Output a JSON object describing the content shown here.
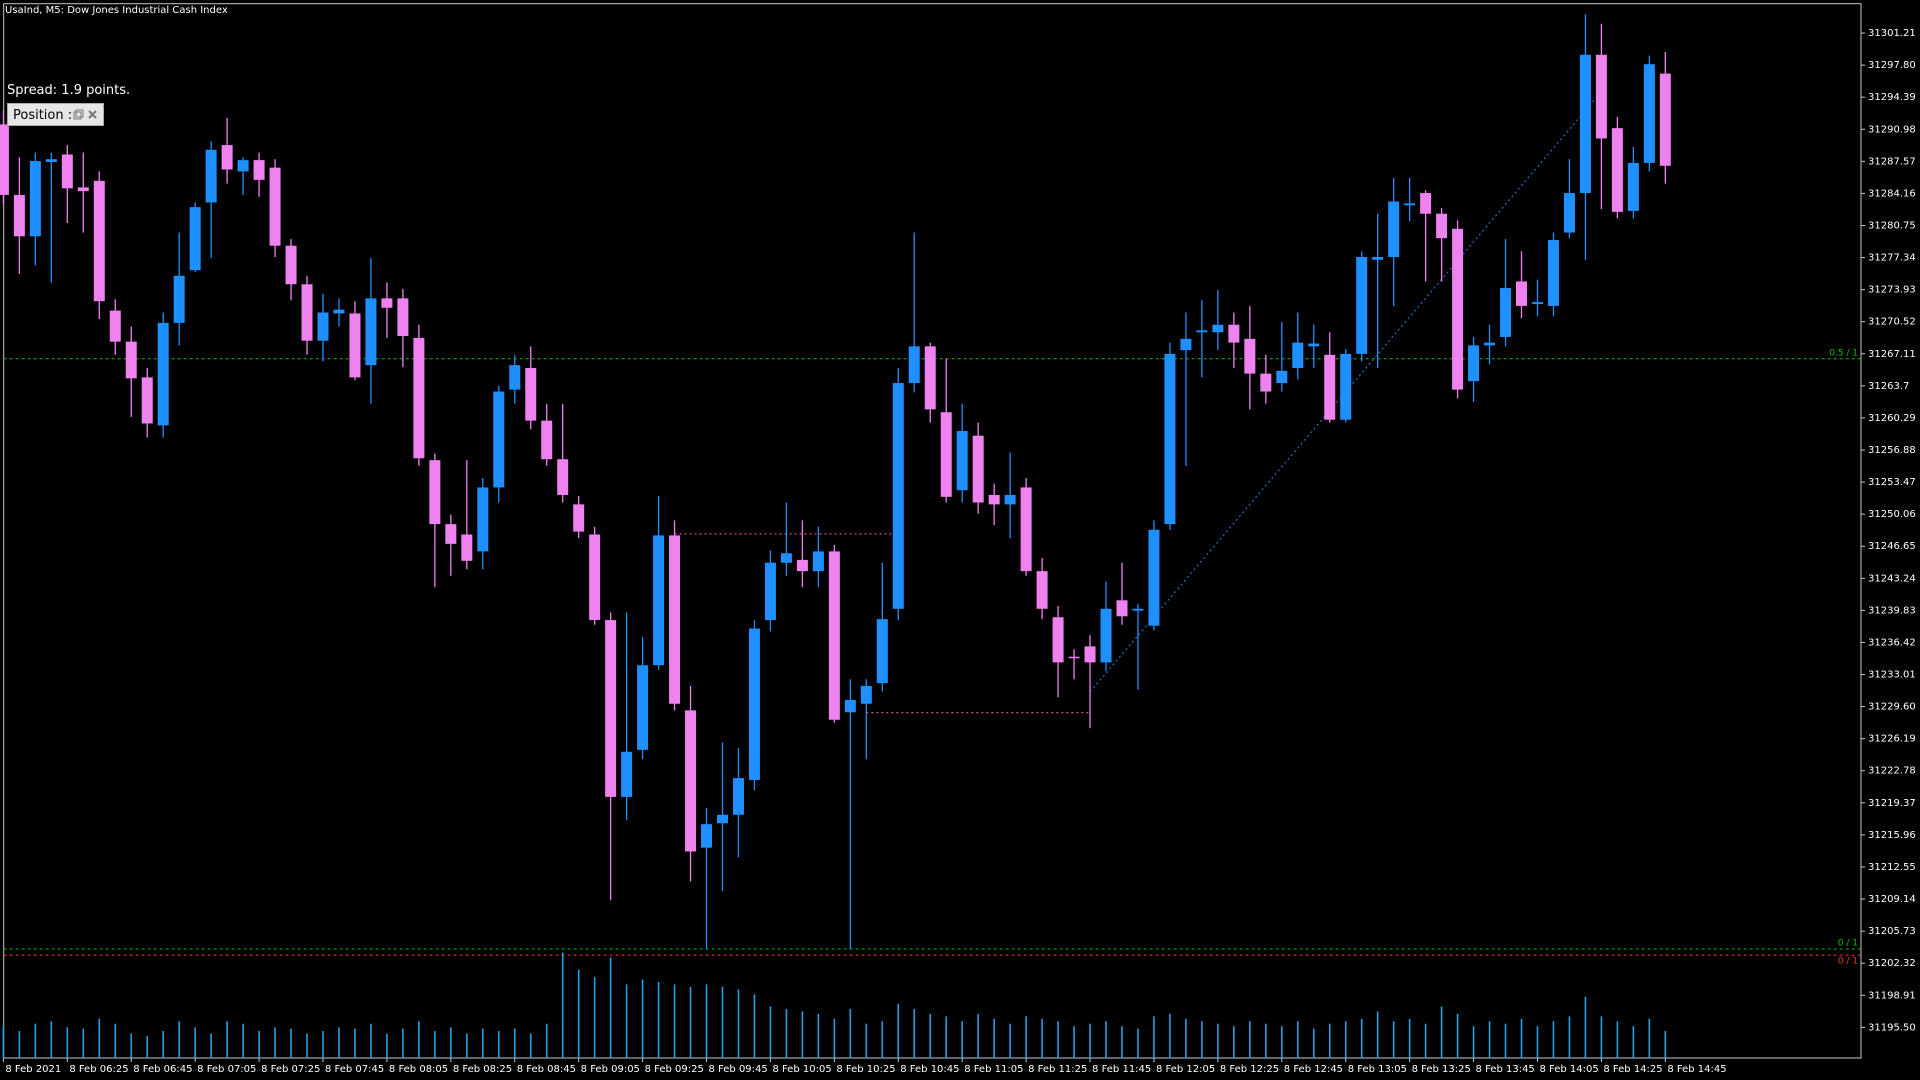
{
  "chart_data": {
    "type": "candlestick",
    "title": "UsaInd, M5:  Dow Jones Industrial Cash Index",
    "categories": [
      "8 Feb 2021",
      null,
      null,
      null,
      "8 Feb 06:25",
      null,
      null,
      null,
      "8 Feb 06:45",
      null,
      null,
      null,
      "8 Feb 07:05",
      null,
      null,
      null,
      "8 Feb 07:25",
      null,
      null,
      null,
      "8 Feb 07:45",
      null,
      null,
      null,
      "8 Feb 08:05",
      null,
      null,
      null,
      "8 Feb 08:25",
      null,
      null,
      null,
      "8 Feb 08:45",
      null,
      null,
      null,
      "8 Feb 09:05",
      null,
      null,
      null,
      "8 Feb 09:25",
      null,
      null,
      null,
      "8 Feb 09:45",
      null,
      null,
      null,
      "8 Feb 10:05",
      null,
      null,
      null,
      "8 Feb 10:25",
      null,
      null,
      null,
      "8 Feb 10:45",
      null,
      null,
      null,
      "8 Feb 11:05",
      null,
      null,
      null,
      "8 Feb 11:25",
      null,
      null,
      null,
      "8 Feb 11:45",
      null,
      null,
      null,
      "8 Feb 12:05",
      null,
      null,
      null,
      "8 Feb 12:25",
      null,
      null,
      null,
      "8 Feb 12:45",
      null,
      null,
      null,
      "8 Feb 13:05",
      null,
      null,
      null,
      "8 Feb 13:25",
      null,
      null,
      null,
      "8 Feb 13:45",
      null,
      null,
      null,
      "8 Feb 14:05",
      null,
      null,
      null,
      "8 Feb 14:25",
      null,
      null,
      null,
      "8 Feb 14:45"
    ],
    "open": [
      31291.5,
      31284.0,
      31279.6,
      31287.5,
      31288.3,
      31284.8,
      31285.5,
      31271.7,
      31268.4,
      31264.6,
      31259.5,
      31270.4,
      31276.0,
      31283.2,
      31289.3,
      31286.5,
      31287.7,
      31286.9,
      31278.6,
      31274.5,
      31268.5,
      31271.4,
      31271.4,
      31265.9,
      31273.0,
      31273.0,
      31268.8,
      31255.8,
      31249.0,
      31247.9,
      31246.1,
      31252.9,
      31263.3,
      31265.6,
      31260.0,
      31255.9,
      31251.1,
      31247.9,
      31238.8,
      31220.0,
      31225.0,
      31234.0,
      31247.8,
      31229.2,
      31214.6,
      31217.2,
      31218.1,
      31221.8,
      31238.8,
      31244.9,
      31245.2,
      31244.0,
      31246.1,
      31229.0,
      31229.9,
      31232.1,
      31240.0,
      31264.0,
      31267.9,
      31260.9,
      31252.6,
      31258.4,
      31252.1,
      31251.1,
      31252.9,
      31244.0,
      31239.1,
      31234.9,
      31236.0,
      31234.3,
      31240.9,
      31239.8,
      31238.2,
      31249.0,
      31267.5,
      31269.4,
      31269.4,
      31270.2,
      31268.7,
      31265.0,
      31264.0,
      31265.6,
      31267.9,
      31267.0,
      31260.1,
      31267.1,
      31277.1,
      31277.4,
      31282.9,
      31284.2,
      31282.0,
      31280.4,
      31264.2,
      31268.0,
      31268.9,
      31274.8,
      31272.4,
      31272.2,
      31280.0,
      31284.2,
      31298.9,
      31291.1,
      31282.3,
      31287.4,
      31296.9
    ],
    "high": [
      31293.0,
      31288.0,
      31288.5,
      31288.5,
      31289.3,
      31288.5,
      31286.5,
      31272.9,
      31270.0,
      31265.6,
      31271.5,
      31280.0,
      31283.2,
      31289.7,
      31292.2,
      31288.0,
      31288.5,
      31287.8,
      31279.3,
      31275.4,
      31273.5,
      31273.0,
      31272.7,
      31277.3,
      31274.7,
      31274.0,
      31270.2,
      31256.5,
      31250.0,
      31255.8,
      31253.9,
      31263.7,
      31267.0,
      31267.9,
      31261.8,
      31261.8,
      31252.0,
      31248.7,
      31239.6,
      31239.6,
      31237.0,
      31252.0,
      31249.4,
      31231.8,
      31218.8,
      31225.8,
      31225.2,
      31238.8,
      31246.2,
      31251.3,
      31249.4,
      31248.7,
      31246.8,
      31232.5,
      31232.5,
      31244.9,
      31265.6,
      31280.0,
      31268.3,
      31266.6,
      31261.8,
      31259.8,
      31253.3,
      31256.6,
      31253.9,
      31245.4,
      31240.3,
      31235.7,
      31237.2,
      31242.9,
      31244.9,
      31240.5,
      31249.4,
      31268.3,
      31271.5,
      31272.8,
      31273.9,
      31271.5,
      31272.2,
      31267.0,
      31270.5,
      31271.5,
      31270.2,
      31269.4,
      31267.6,
      31278.0,
      31282.0,
      31285.8,
      31285.8,
      31284.5,
      31282.6,
      31281.3,
      31268.9,
      31270.2,
      31279.3,
      31278.0,
      31275.0,
      31280.0,
      31287.8,
      31303.2,
      31302.2,
      31292.3,
      31289.1,
      31298.8,
      31299.2
    ],
    "low": [
      31283.0,
      31275.6,
      31276.5,
      31274.7,
      31281.0,
      31280.0,
      31270.8,
      31267.0,
      31260.4,
      31258.2,
      31258.2,
      31268.0,
      31275.8,
      31277.3,
      31285.2,
      31284.0,
      31283.8,
      31277.4,
      31272.8,
      31267.0,
      31266.3,
      31270.0,
      31264.3,
      31261.8,
      31268.8,
      31265.7,
      31255.2,
      31242.3,
      31243.5,
      31244.2,
      31244.2,
      31251.3,
      31261.8,
      31259.1,
      31255.2,
      31251.3,
      31247.5,
      31238.3,
      31209.0,
      31217.5,
      31224.0,
      31233.5,
      31229.2,
      31211.0,
      31203.8,
      31210.0,
      31213.6,
      31220.7,
      31237.6,
      31243.5,
      31242.3,
      31242.3,
      31227.9,
      31203.8,
      31224.0,
      31231.2,
      31238.8,
      31263.0,
      31259.8,
      31251.3,
      31251.3,
      31250.1,
      31248.9,
      31247.5,
      31243.5,
      31238.9,
      31230.6,
      31232.5,
      31227.3,
      31233.4,
      31238.3,
      31231.4,
      31237.7,
      31248.4,
      31255.2,
      31264.6,
      31267.5,
      31265.6,
      31261.2,
      31261.8,
      31263.1,
      31264.4,
      31265.6,
      31259.8,
      31259.8,
      31266.3,
      31265.6,
      31272.2,
      31281.2,
      31274.8,
      31274.8,
      31262.4,
      31262.0,
      31266.0,
      31267.9,
      31270.9,
      31271.1,
      31271.1,
      31279.4,
      31277.1,
      31282.5,
      31281.5,
      31281.5,
      31286.5,
      31285.2
    ],
    "close": [
      31284.0,
      31279.6,
      31287.6,
      31287.8,
      31284.7,
      31284.4,
      31272.7,
      31268.4,
      31264.5,
      31259.7,
      31270.4,
      31275.4,
      31282.7,
      31288.8,
      31286.7,
      31287.7,
      31285.6,
      31278.6,
      31274.5,
      31268.5,
      31271.5,
      31271.8,
      31264.6,
      31273.0,
      31272.0,
      31269.0,
      31256.0,
      31249.0,
      31246.9,
      31245.1,
      31252.9,
      31263.1,
      31265.9,
      31260.0,
      31255.9,
      31252.1,
      31248.2,
      31238.8,
      31220.0,
      31224.8,
      31234.0,
      31247.8,
      31229.9,
      31214.2,
      31217.1,
      31218.1,
      31222.0,
      31237.9,
      31244.9,
      31245.9,
      31244.0,
      31246.1,
      31228.2,
      31230.3,
      31231.8,
      31238.9,
      31264.0,
      31267.9,
      31261.2,
      31251.9,
      31258.9,
      31251.3,
      31251.1,
      31252.1,
      31244.0,
      31240.0,
      31234.3,
      31234.8,
      31234.3,
      31240.0,
      31239.2,
      31240.0,
      31248.4,
      31267.1,
      31268.7,
      31269.6,
      31270.2,
      31268.3,
      31265.0,
      31263.1,
      31265.3,
      31268.3,
      31268.2,
      31260.1,
      31267.1,
      31277.4,
      31277.4,
      31283.3,
      31283.1,
      31282.0,
      31279.4,
      31263.3,
      31268.0,
      31268.3,
      31274.1,
      31272.2,
      31272.6,
      31279.2,
      31284.2,
      31298.9,
      31290.0,
      31282.2,
      31287.4,
      31297.9,
      31287.1
    ],
    "volume": [
      26,
      22,
      28,
      30,
      25,
      24,
      32,
      28,
      20,
      18,
      22,
      30,
      25,
      20,
      30,
      28,
      22,
      25,
      24,
      20,
      22,
      25,
      24,
      28,
      20,
      24,
      30,
      22,
      25,
      20,
      24,
      22,
      24,
      20,
      28,
      86,
      72,
      66,
      82,
      60,
      64,
      62,
      60,
      58,
      60,
      58,
      56,
      52,
      42,
      40,
      38,
      36,
      32,
      40,
      28,
      30,
      44,
      40,
      36,
      34,
      30,
      36,
      32,
      28,
      34,
      32,
      30,
      26,
      28,
      30,
      26,
      24,
      34,
      36,
      32,
      30,
      28,
      26,
      30,
      28,
      26,
      30,
      24,
      28,
      30,
      32,
      38,
      30,
      32,
      28,
      42,
      36,
      26,
      30,
      28,
      32,
      26,
      30,
      34,
      50,
      34,
      30,
      26,
      32,
      22
    ],
    "up_color": "#1e90ff",
    "down_color": "#ee82ee",
    "volume_color": "#1fa2e8",
    "ylim": [
      31192.24,
      31304.33
    ],
    "yticks": [
      31301.21,
      {
        "value": 31297.8,
        "label": "31297.80"
      },
      31294.39,
      31290.98,
      31287.57,
      31284.16,
      31280.75,
      31277.34,
      31273.93,
      31270.52,
      31267.11,
      31263.7,
      31260.29,
      31256.88,
      31253.47,
      31250.06,
      31246.65,
      31243.24,
      31239.83,
      31236.42,
      31233.01,
      {
        "value": 31229.6,
        "label": "31229.60"
      },
      31226.19,
      31222.78,
      31219.37,
      31215.96,
      31212.55,
      31209.14,
      31205.73,
      31202.32,
      31198.91,
      {
        "value": 31195.5,
        "label": "31195.50"
      }
    ],
    "levels": [
      {
        "value": 31266.58,
        "label": "0.5 / 1",
        "color": "#00c000"
      },
      {
        "value": 31203.83,
        "label": "0 / 1",
        "color": "#00c000"
      },
      {
        "value": 31203.18,
        "label": "0 / 1",
        "color": "#ff3030"
      }
    ],
    "trade_lines": [
      {
        "start": 42,
        "end": 56,
        "values": [
          31247.96,
          31247.96
        ],
        "color": "#d0508a"
      },
      {
        "start": 54,
        "end": 68,
        "values": [
          31228.96,
          31228.96
        ],
        "color": "#d0508a"
      },
      {
        "start": 68,
        "end": 100,
        "values": [
          31231.17,
          31294.96
        ],
        "color": "#1e70c0"
      }
    ]
  },
  "panel": {
    "spread": "Spread: 1.9 points.",
    "position": "Position :"
  }
}
